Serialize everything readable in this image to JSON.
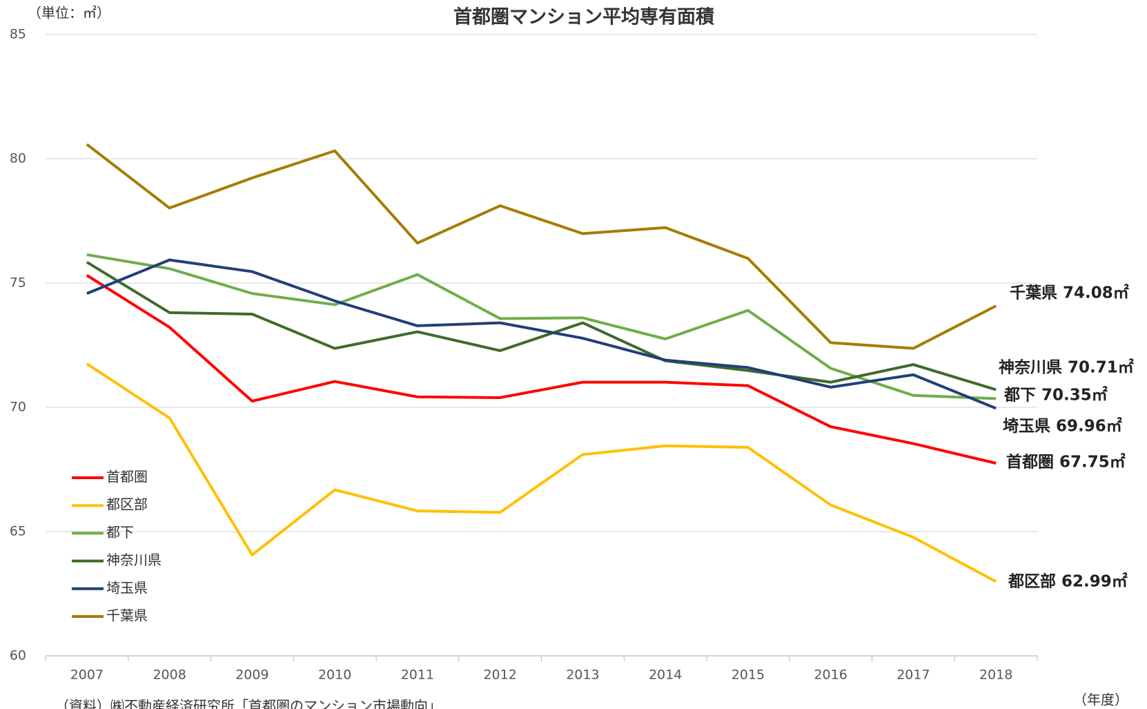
{
  "chart_data": {
    "type": "line",
    "title": "首都圏マンション平均専有面積",
    "unit_label": "（単位：㎡）",
    "x_label": "（年度）",
    "source": "（資料）㈱不動産経済研究所「首都圏のマンション市場動向」",
    "categories": [
      "2007",
      "2008",
      "2009",
      "2010",
      "2011",
      "2012",
      "2013",
      "2014",
      "2015",
      "2016",
      "2017",
      "2018"
    ],
    "ylim": [
      60,
      85
    ],
    "yticks": [
      60,
      65,
      70,
      75,
      80,
      85
    ],
    "grid": true,
    "legend": "left",
    "series": [
      {
        "name": "首都圏",
        "color": "#ff0000",
        "values": [
          75.31,
          73.22,
          70.25,
          71.04,
          70.42,
          70.39,
          71.01,
          71.01,
          70.87,
          69.22,
          68.54,
          67.75
        ],
        "value_labels": [
          null,
          null,
          null,
          null,
          null,
          null,
          null,
          null,
          null,
          null,
          null,
          "首都圏 67.75㎡"
        ]
      },
      {
        "name": "都区部",
        "color": "#ffc000",
        "values": [
          71.75,
          69.57,
          64.06,
          66.68,
          65.83,
          65.77,
          68.1,
          68.45,
          68.39,
          66.07,
          64.77,
          62.99
        ],
        "value_labels": [
          null,
          null,
          null,
          null,
          null,
          null,
          null,
          null,
          null,
          null,
          null,
          "都区部 62.99㎡"
        ]
      },
      {
        "name": "都下",
        "color": "#70ad47",
        "values": [
          76.14,
          75.58,
          74.58,
          74.13,
          75.34,
          73.57,
          73.6,
          72.75,
          73.9,
          71.57,
          70.48,
          70.35
        ],
        "value_labels": [
          null,
          null,
          null,
          null,
          null,
          null,
          null,
          null,
          null,
          null,
          null,
          "都下 70.35㎡"
        ]
      },
      {
        "name": "神奈川県",
        "color": "#3d6b2a",
        "values": [
          75.84,
          73.81,
          73.75,
          72.37,
          73.04,
          72.28,
          73.4,
          71.87,
          71.48,
          71.01,
          71.72,
          70.71
        ],
        "value_labels": [
          null,
          null,
          null,
          null,
          null,
          null,
          null,
          null,
          null,
          null,
          null,
          "神奈川県 70.71㎡"
        ]
      },
      {
        "name": "埼玉県",
        "color": "#203f7a",
        "values": [
          74.58,
          75.93,
          75.46,
          74.28,
          73.28,
          73.4,
          72.78,
          71.9,
          71.6,
          70.81,
          71.31,
          69.96
        ],
        "value_labels": [
          null,
          null,
          null,
          null,
          null,
          null,
          null,
          null,
          null,
          null,
          null,
          "埼玉県 69.96㎡"
        ]
      },
      {
        "name": "千葉県",
        "color": "#a57c00",
        "values": [
          80.58,
          78.02,
          79.23,
          80.32,
          76.61,
          78.11,
          76.99,
          77.23,
          75.99,
          72.6,
          72.37,
          74.08
        ],
        "value_labels": [
          null,
          null,
          null,
          null,
          null,
          null,
          null,
          null,
          null,
          null,
          null,
          "千葉県 74.08㎡"
        ]
      }
    ]
  }
}
